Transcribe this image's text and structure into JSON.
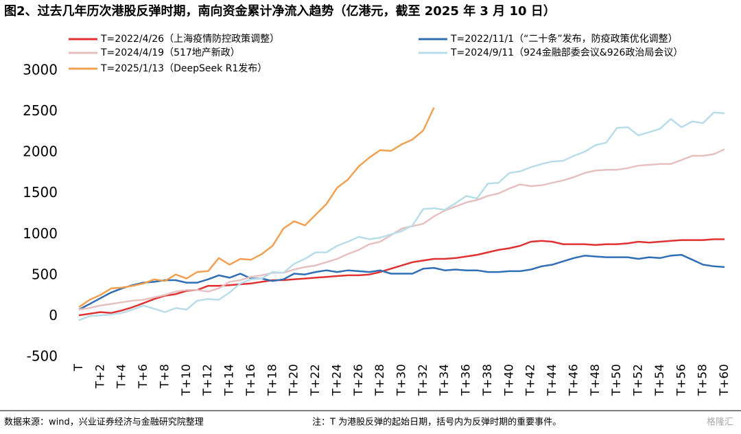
{
  "chart_data": {
    "type": "line",
    "title": "图2、过去几年历次港股反弹时期，南向资金累计净流入趋势（亿港元，截至 2025 年 3 月 10 日）",
    "source": "数据来源：wind，兴业证券经济与金融研究院整理",
    "note": "注：T 为港股反弹的起始日期，括号内为反弹时期的重要事件。",
    "watermark": "格隆汇",
    "categories": [
      "T",
      null,
      "T+2",
      null,
      "T+4",
      null,
      "T+6",
      null,
      "T+8",
      null,
      "T+10",
      null,
      "T+12",
      null,
      "T+14",
      null,
      "T+16",
      null,
      "T+18",
      null,
      "T+20",
      null,
      "T+22",
      null,
      "T+24",
      null,
      "T+26",
      null,
      "T+28",
      null,
      "T+30",
      null,
      "T+32",
      null,
      "T+34",
      null,
      "T+36",
      null,
      "T+38",
      null,
      "T+40",
      null,
      "T+42",
      null,
      "T+44",
      null,
      "T+46",
      null,
      "T+48",
      null,
      "T+50",
      null,
      "T+52",
      null,
      "T+54",
      null,
      "T+56",
      null,
      "T+58",
      null,
      "T+60"
    ],
    "ylim": [
      -500,
      3000
    ],
    "yticks": [
      -500,
      0,
      500,
      1000,
      1500,
      2000,
      2500,
      3000
    ],
    "grid": false,
    "series": [
      {
        "name": "T=2022/4/26（上海疫情防控政策调整）",
        "color": "#e03030",
        "values": [
          10,
          30,
          50,
          40,
          70,
          110,
          160,
          210,
          250,
          270,
          310,
          320,
          370,
          370,
          380,
          390,
          400,
          420,
          440,
          440,
          450,
          460,
          470,
          480,
          490,
          500,
          500,
          510,
          540,
          580,
          620,
          660,
          680,
          700,
          700,
          710,
          730,
          750,
          780,
          810,
          830,
          860,
          910,
          920,
          910,
          880,
          880,
          880,
          870,
          880,
          880,
          890,
          910,
          900,
          910,
          920,
          930,
          930,
          930,
          940,
          940
        ]
      },
      {
        "name": "T=2022/11/1（“二十条”发布，防疫政策优化调整）",
        "color": "#2f6db5",
        "values": [
          80,
          150,
          220,
          290,
          340,
          380,
          410,
          420,
          440,
          440,
          410,
          410,
          450,
          500,
          470,
          520,
          460,
          460,
          430,
          450,
          520,
          510,
          540,
          560,
          540,
          560,
          550,
          540,
          560,
          520,
          520,
          520,
          580,
          590,
          560,
          570,
          560,
          560,
          540,
          540,
          550,
          550,
          570,
          610,
          630,
          670,
          710,
          740,
          730,
          720,
          720,
          720,
          700,
          720,
          710,
          740,
          750,
          690,
          630,
          610,
          600
        ]
      },
      {
        "name": "T=2024/4/19（517地产新政）",
        "color": "#e6c0c0",
        "values": [
          80,
          100,
          130,
          150,
          170,
          190,
          200,
          230,
          260,
          300,
          320,
          320,
          300,
          340,
          420,
          440,
          480,
          500,
          530,
          530,
          570,
          600,
          620,
          660,
          700,
          760,
          810,
          880,
          910,
          990,
          1070,
          1100,
          1130,
          1220,
          1290,
          1340,
          1390,
          1420,
          1470,
          1500,
          1560,
          1610,
          1590,
          1600,
          1630,
          1660,
          1700,
          1750,
          1780,
          1790,
          1790,
          1810,
          1840,
          1850,
          1860,
          1860,
          1910,
          1960,
          1960,
          1980,
          2040
        ]
      },
      {
        "name": "T=2024/9/11（924金融部委会议&926政治局会议）",
        "color": "#b8dde8",
        "values": [
          -50,
          0,
          10,
          20,
          40,
          80,
          130,
          90,
          50,
          100,
          80,
          190,
          210,
          200,
          290,
          400,
          450,
          460,
          540,
          530,
          640,
          700,
          780,
          780,
          860,
          910,
          970,
          940,
          960,
          1000,
          1040,
          1110,
          1310,
          1320,
          1300,
          1380,
          1470,
          1440,
          1620,
          1630,
          1750,
          1770,
          1820,
          1860,
          1890,
          1900,
          1960,
          2010,
          2090,
          2120,
          2300,
          2310,
          2210,
          2250,
          2290,
          2410,
          2310,
          2380,
          2360,
          2490,
          2480
        ]
      },
      {
        "name": "T=2025/1/13（DeepSeek R1发布）",
        "color": "#f0a050",
        "values": [
          110,
          200,
          260,
          340,
          350,
          370,
          400,
          450,
          430,
          510,
          460,
          540,
          550,
          710,
          630,
          700,
          690,
          760,
          860,
          1070,
          1160,
          1110,
          1240,
          1370,
          1570,
          1670,
          1830,
          1940,
          2030,
          2020,
          2100,
          2160,
          2270,
          2550,
          null,
          null,
          null,
          null,
          null,
          null,
          null,
          null,
          null,
          null,
          null,
          null,
          null,
          null,
          null,
          null,
          null,
          null,
          null,
          null,
          null,
          null,
          null,
          null,
          null,
          null,
          null
        ]
      }
    ]
  }
}
